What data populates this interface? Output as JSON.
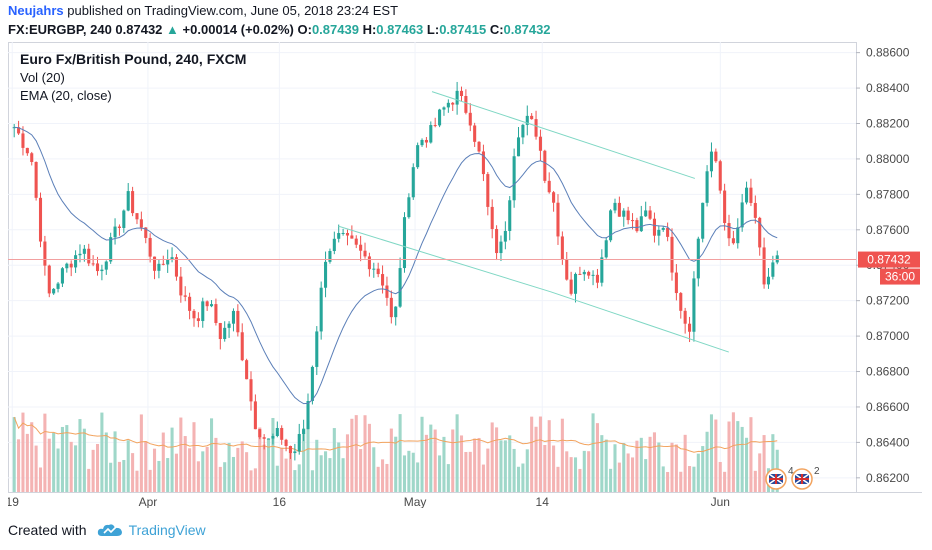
{
  "header": {
    "author": "Neujahrs",
    "published_text": "published on TradingView.com, June 05, 2018 23:24 EST",
    "symbol": "FX:EURGBP, 240",
    "last": "0.87432",
    "change": "+0.00014 (+0.02%)",
    "o_label": "O:",
    "o_value": "0.87439",
    "h_label": "H:",
    "h_value": "0.87463",
    "l_label": "L:",
    "l_value": "0.87415",
    "c_label": "C:",
    "c_value": "0.87432"
  },
  "overlay": {
    "title": "Euro Fx/British Pound, 240, FXCM",
    "vol": "Vol (20)",
    "ema": "EMA (20, close)"
  },
  "footer": {
    "created_with": "Created with",
    "brand": "TradingView"
  },
  "chart_data": {
    "type": "candlestick",
    "price_axis": {
      "ticks": [
        "0.88600",
        "0.88400",
        "0.88200",
        "0.88000",
        "0.87800",
        "0.87600",
        "0.87400",
        "0.87200",
        "0.87000",
        "0.86800",
        "0.86600",
        "0.86400",
        "0.86200"
      ],
      "ylim": [
        0.8612,
        0.8866
      ]
    },
    "time_axis": {
      "ticks": [
        "19",
        "Apr",
        "16",
        "May",
        "14",
        "Jun"
      ]
    },
    "price_label": "0.87432",
    "countdown_label": "36:00",
    "event_markers": [
      "4",
      "2"
    ],
    "colors": {
      "up": "#26a69a",
      "down": "#ef5350",
      "up_vol": "#9fd7c9",
      "down_vol": "#f4b3b3",
      "ema": "#5b7fb8",
      "vol_ma": "#f2a35e",
      "channel": "#7fd7c4",
      "price_line": "#f2a0a0"
    },
    "trend_channel": {
      "upper": [
        [
          0.5,
          0.8838
        ],
        [
          0.81,
          0.8789
        ]
      ],
      "lower": [
        [
          0.39,
          0.8762
        ],
        [
          0.64,
          0.8725
        ],
        [
          0.85,
          0.8691
        ]
      ]
    },
    "anchors": [
      [
        0,
        0.8818
      ],
      [
        0.02,
        0.8802
      ],
      [
        0.04,
        0.8722
      ],
      [
        0.06,
        0.8738
      ],
      [
        0.08,
        0.875
      ],
      [
        0.1,
        0.8736
      ],
      [
        0.12,
        0.8758
      ],
      [
        0.135,
        0.8778
      ],
      [
        0.15,
        0.8762
      ],
      [
        0.17,
        0.8735
      ],
      [
        0.185,
        0.8748
      ],
      [
        0.2,
        0.8722
      ],
      [
        0.215,
        0.871
      ],
      [
        0.23,
        0.872
      ],
      [
        0.245,
        0.87
      ],
      [
        0.26,
        0.8712
      ],
      [
        0.275,
        0.868
      ],
      [
        0.285,
        0.8652
      ],
      [
        0.3,
        0.864
      ],
      [
        0.315,
        0.8645
      ],
      [
        0.33,
        0.8632
      ],
      [
        0.345,
        0.865
      ],
      [
        0.355,
        0.869
      ],
      [
        0.37,
        0.8748
      ],
      [
        0.385,
        0.8755
      ],
      [
        0.4,
        0.8752
      ],
      [
        0.415,
        0.8745
      ],
      [
        0.43,
        0.8738
      ],
      [
        0.44,
        0.8728
      ],
      [
        0.45,
        0.8702
      ],
      [
        0.46,
        0.8752
      ],
      [
        0.47,
        0.879
      ],
      [
        0.48,
        0.881
      ],
      [
        0.495,
        0.8815
      ],
      [
        0.505,
        0.8825
      ],
      [
        0.515,
        0.8832
      ],
      [
        0.525,
        0.8836
      ],
      [
        0.54,
        0.8825
      ],
      [
        0.555,
        0.8795
      ],
      [
        0.565,
        0.876
      ],
      [
        0.575,
        0.8745
      ],
      [
        0.585,
        0.8768
      ],
      [
        0.595,
        0.8815
      ],
      [
        0.61,
        0.8822
      ],
      [
        0.62,
        0.8815
      ],
      [
        0.63,
        0.879
      ],
      [
        0.64,
        0.8775
      ],
      [
        0.65,
        0.8745
      ],
      [
        0.66,
        0.8725
      ],
      [
        0.67,
        0.8738
      ],
      [
        0.68,
        0.874
      ],
      [
        0.69,
        0.873
      ],
      [
        0.7,
        0.8752
      ],
      [
        0.71,
        0.8778
      ],
      [
        0.72,
        0.877
      ],
      [
        0.73,
        0.8765
      ],
      [
        0.74,
        0.876
      ],
      [
        0.75,
        0.877
      ],
      [
        0.76,
        0.8758
      ],
      [
        0.77,
        0.8765
      ],
      [
        0.78,
        0.874
      ],
      [
        0.79,
        0.8718
      ],
      [
        0.8,
        0.8702
      ],
      [
        0.81,
        0.875
      ],
      [
        0.82,
        0.879
      ],
      [
        0.83,
        0.8805
      ],
      [
        0.84,
        0.8775
      ],
      [
        0.85,
        0.8745
      ],
      [
        0.86,
        0.8765
      ],
      [
        0.87,
        0.8785
      ],
      [
        0.88,
        0.876
      ],
      [
        0.89,
        0.8728
      ],
      [
        0.9,
        0.874
      ],
      [
        0.905,
        0.8743
      ]
    ]
  }
}
